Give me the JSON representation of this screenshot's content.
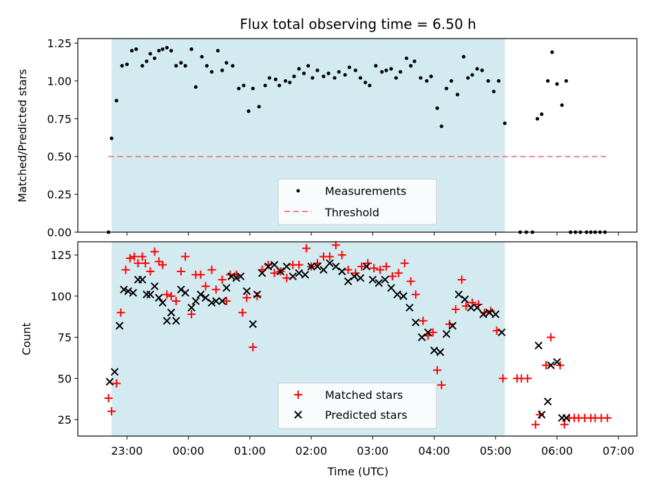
{
  "chart_data": [
    {
      "type": "scatter",
      "title": "Flux total observing time = 6.50 h",
      "xlabel": "",
      "ylabel": "Matched/Predicted stars",
      "ylim": [
        0,
        1.28
      ],
      "yticks": [
        "0.00",
        "0.25",
        "0.50",
        "0.75",
        "1.00",
        "1.25"
      ],
      "x_range_hours": [
        -1.8,
        7.3
      ],
      "shaded_span_hours": [
        -1.25,
        5.15
      ],
      "shaded_color": "#d3eaf0",
      "threshold": 0.5,
      "threshold_range_hours": [
        -1.3,
        6.8
      ],
      "threshold_color": "#f08080",
      "point_color": "#000000",
      "legend": [
        "Measurements",
        "Threshold"
      ],
      "series": [
        {
          "name": "Measurements",
          "x": [
            -1.3,
            -1.25,
            -1.17,
            -1.08,
            -1.0,
            -0.92,
            -0.85,
            -0.75,
            -0.68,
            -0.62,
            -0.55,
            -0.48,
            -0.42,
            -0.35,
            -0.28,
            -0.2,
            -0.12,
            -0.05,
            0.05,
            0.12,
            0.22,
            0.3,
            0.38,
            0.48,
            0.55,
            0.62,
            0.72,
            0.82,
            0.9,
            0.98,
            1.05,
            1.15,
            1.25,
            1.32,
            1.42,
            1.48,
            1.58,
            1.65,
            1.72,
            1.8,
            1.88,
            1.95,
            2.02,
            2.1,
            2.2,
            2.28,
            2.38,
            2.45,
            2.55,
            2.62,
            2.72,
            2.8,
            2.88,
            2.95,
            3.05,
            3.15,
            3.22,
            3.3,
            3.38,
            3.45,
            3.55,
            3.62,
            3.68,
            3.78,
            3.88,
            3.95,
            4.05,
            4.12,
            4.2,
            4.28,
            4.38,
            4.48,
            4.55,
            4.62,
            4.7,
            4.78,
            4.88,
            4.97,
            5.05,
            5.15,
            5.4,
            5.5,
            5.6,
            5.68,
            5.75,
            5.85,
            5.92,
            6.0,
            6.08,
            6.15,
            6.22,
            6.3,
            6.38,
            6.48,
            6.55,
            6.62,
            6.7,
            6.78
          ],
          "y": [
            0.0,
            0.62,
            0.87,
            1.1,
            1.11,
            1.2,
            1.21,
            1.1,
            1.13,
            1.18,
            1.15,
            1.2,
            1.21,
            1.22,
            1.2,
            1.1,
            1.12,
            1.1,
            1.21,
            0.96,
            1.16,
            1.1,
            1.06,
            1.2,
            1.07,
            1.12,
            1.1,
            0.95,
            0.97,
            0.8,
            0.95,
            0.83,
            0.97,
            1.02,
            1.01,
            0.97,
            1.0,
            0.99,
            1.03,
            1.08,
            1.05,
            1.1,
            1.02,
            1.07,
            1.03,
            1.05,
            1.02,
            1.06,
            1.04,
            1.09,
            1.07,
            1.02,
            0.99,
            0.97,
            1.1,
            1.06,
            1.07,
            1.08,
            1.02,
            1.06,
            1.15,
            1.1,
            1.13,
            1.02,
            1.0,
            1.03,
            0.82,
            0.7,
            0.95,
            1.0,
            0.91,
            1.16,
            1.02,
            1.04,
            1.08,
            1.07,
            1.0,
            0.93,
            1.0,
            0.72,
            0.0,
            0.0,
            0.0,
            0.75,
            0.78,
            1.0,
            1.19,
            0.98,
            0.84,
            1.0,
            0.0,
            0.0,
            0.0,
            0.0,
            0.0,
            0.0,
            0.0,
            0.0
          ]
        }
      ]
    },
    {
      "type": "scatter",
      "title": "",
      "xlabel": "Time (UTC)",
      "ylabel": "Count",
      "ylim": [
        15,
        133
      ],
      "yticks": [
        "25",
        "50",
        "75",
        "100",
        "125"
      ],
      "xticks": [
        "23:00",
        "00:00",
        "01:00",
        "02:00",
        "03:00",
        "04:00",
        "05:00",
        "06:00",
        "07:00"
      ],
      "x_range_hours": [
        -1.8,
        7.3
      ],
      "shaded_span_hours": [
        -1.25,
        5.15
      ],
      "legend": [
        "Matched stars",
        "Predicted stars"
      ],
      "series": [
        {
          "name": "Matched stars",
          "marker": "+",
          "color": "#ff0000",
          "x": [
            -1.3,
            -1.25,
            -1.17,
            -1.1,
            -1.02,
            -0.95,
            -0.88,
            -0.82,
            -0.75,
            -0.7,
            -0.62,
            -0.55,
            -0.48,
            -0.42,
            -0.35,
            -0.28,
            -0.2,
            -0.12,
            -0.05,
            0.05,
            0.12,
            0.2,
            0.28,
            0.38,
            0.45,
            0.55,
            0.62,
            0.68,
            0.78,
            0.88,
            0.95,
            1.05,
            1.12,
            1.2,
            1.3,
            1.4,
            1.5,
            1.6,
            1.7,
            1.8,
            1.92,
            2.0,
            2.1,
            2.2,
            2.3,
            2.4,
            2.5,
            2.6,
            2.72,
            2.82,
            2.92,
            3.02,
            3.12,
            3.22,
            3.32,
            3.42,
            3.52,
            3.62,
            3.7,
            3.82,
            3.9,
            3.98,
            4.05,
            4.12,
            4.25,
            4.35,
            4.45,
            4.52,
            4.62,
            4.72,
            4.82,
            4.92,
            5.02,
            5.12,
            5.35,
            5.42,
            5.52,
            5.65,
            5.72,
            5.82,
            5.9,
            6.05,
            6.12,
            6.2,
            6.28,
            6.35,
            6.45,
            6.55,
            6.62,
            6.72,
            6.82
          ],
          "y": [
            38,
            30,
            47,
            90,
            116,
            123,
            124,
            120,
            124,
            120,
            115,
            127,
            121,
            119,
            101,
            100,
            97,
            115,
            124,
            89,
            113,
            113,
            106,
            116,
            104,
            110,
            97,
            113,
            113,
            90,
            99,
            69,
            100,
            116,
            119,
            114,
            115,
            111,
            119,
            119,
            129,
            118,
            120,
            124,
            124,
            131,
            125,
            116,
            114,
            118,
            120,
            117,
            116,
            118,
            112,
            114,
            120,
            109,
            101,
            85,
            76,
            78,
            55,
            46,
            83,
            92,
            110,
            94,
            96,
            95,
            90,
            91,
            79,
            50,
            50,
            50,
            50,
            22,
            28,
            58,
            75,
            58,
            22,
            26,
            26,
            26,
            26,
            26,
            26,
            26,
            26
          ]
        },
        {
          "name": "Predicted stars",
          "marker": "x",
          "color": "#000000",
          "x": [
            -1.28,
            -1.2,
            -1.12,
            -1.05,
            -0.98,
            -0.9,
            -0.82,
            -0.75,
            -0.68,
            -0.62,
            -0.55,
            -0.48,
            -0.42,
            -0.35,
            -0.28,
            -0.2,
            -0.12,
            -0.05,
            0.05,
            0.12,
            0.2,
            0.28,
            0.38,
            0.45,
            0.55,
            0.62,
            0.7,
            0.78,
            0.85,
            0.95,
            1.05,
            1.12,
            1.2,
            1.3,
            1.4,
            1.5,
            1.6,
            1.7,
            1.8,
            1.9,
            2.0,
            2.1,
            2.2,
            2.3,
            2.4,
            2.5,
            2.6,
            2.7,
            2.8,
            2.9,
            3.0,
            3.1,
            3.2,
            3.3,
            3.4,
            3.5,
            3.6,
            3.7,
            3.8,
            3.9,
            4.0,
            4.1,
            4.2,
            4.3,
            4.4,
            4.5,
            4.6,
            4.7,
            4.8,
            4.9,
            5.0,
            5.1,
            5.7,
            5.75,
            5.85,
            5.9,
            6.0,
            6.08,
            6.15
          ],
          "y": [
            48,
            54,
            82,
            104,
            103,
            102,
            110,
            110,
            101,
            101,
            106,
            99,
            96,
            85,
            90,
            85,
            104,
            102,
            93,
            97,
            101,
            99,
            96,
            97,
            97,
            105,
            112,
            111,
            112,
            103,
            83,
            101,
            114,
            118,
            119,
            115,
            118,
            112,
            114,
            113,
            118,
            118,
            116,
            120,
            118,
            115,
            109,
            112,
            111,
            118,
            110,
            108,
            110,
            105,
            101,
            100,
            93,
            84,
            75,
            78,
            67,
            66,
            77,
            82,
            101,
            98,
            93,
            93,
            89,
            90,
            89,
            78,
            70,
            28,
            36,
            58,
            60,
            26,
            26
          ]
        }
      ]
    }
  ]
}
